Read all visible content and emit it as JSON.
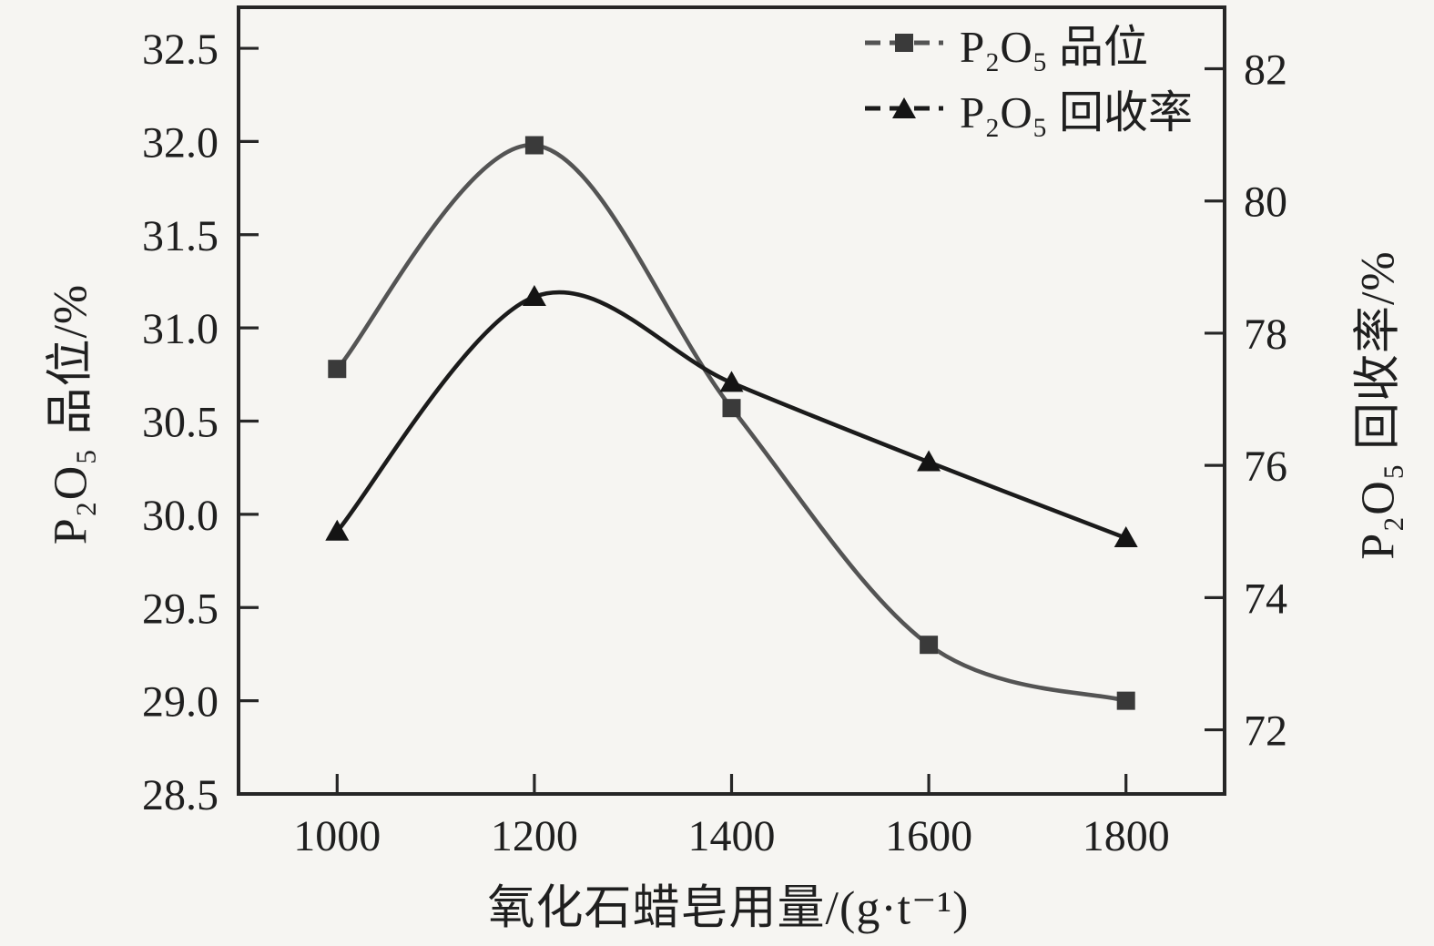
{
  "figure": {
    "background": "#f6f5f2",
    "text_color": "#1f1f1f",
    "axis_color": "#262626"
  },
  "chart_data": {
    "type": "line",
    "title": "",
    "xlabel": "氧化石蜡皂用量/(g·t⁻¹)",
    "ylabel_left": "P₂O₅ 品位/%",
    "ylabel_right": "P₂O₅ 回收率/%",
    "x": [
      1000,
      1200,
      1400,
      1600,
      1800
    ],
    "series": [
      {
        "name": "P₂O₅ 品位",
        "axis": "left",
        "marker": "square",
        "line_color": "#545454",
        "marker_color": "#3a3a3a",
        "values": [
          30.78,
          31.98,
          30.57,
          29.3,
          29.0
        ]
      },
      {
        "name": "P₂O₅ 回收率",
        "axis": "right",
        "marker": "triangle",
        "line_color": "#1b1b1b",
        "marker_color": "#141414",
        "values": [
          75.0,
          78.55,
          77.25,
          76.05,
          74.9
        ]
      }
    ],
    "xlim": [
      900,
      1900
    ],
    "ylim_left": [
      28.5,
      32.72
    ],
    "ylim_right": [
      71.03,
      82.93
    ],
    "xticks": [
      "1000",
      "1200",
      "1400",
      "1600",
      "1800"
    ],
    "yticks_left": [
      "28.5",
      "29.0",
      "29.5",
      "30.0",
      "30.5",
      "31.0",
      "31.5",
      "32.0",
      "32.5"
    ],
    "yticks_right": [
      "72",
      "74",
      "76",
      "78",
      "80",
      "82"
    ],
    "grid": false,
    "legend_position": "top-right-inside"
  }
}
